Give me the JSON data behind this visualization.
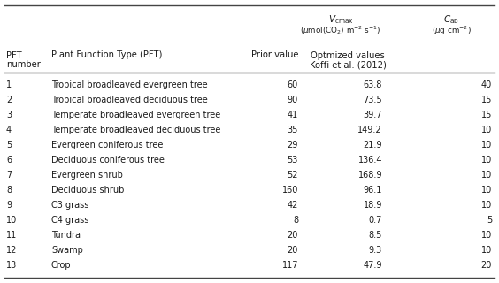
{
  "pft_numbers": [
    "1",
    "2",
    "3",
    "4",
    "5",
    "6",
    "7",
    "8",
    "9",
    "10",
    "11",
    "12",
    "13"
  ],
  "pft_names": [
    "Tropical broadleaved evergreen tree",
    "Tropical broadleaved deciduous tree",
    "Temperate broadleaved evergreen tree",
    "Temperate broadleaved deciduous tree",
    "Evergreen coniferous tree",
    "Deciduous coniferous tree",
    "Evergreen shrub",
    "Deciduous shrub",
    "C3 grass",
    "C4 grass",
    "Tundra",
    "Swamp",
    "Crop"
  ],
  "prior_values": [
    "60",
    "90",
    "41",
    "35",
    "29",
    "53",
    "52",
    "160",
    "42",
    "8",
    "20",
    "20",
    "117"
  ],
  "optimized_values": [
    "63.8",
    "73.5",
    "39.7",
    "149.2",
    "21.9",
    "136.4",
    "168.9",
    "96.1",
    "18.9",
    "0.7",
    "8.5",
    "9.3",
    "47.9"
  ],
  "cab_values": [
    "40",
    "15",
    "15",
    "10",
    "10",
    "10",
    "10",
    "10",
    "10",
    "5",
    "10",
    "10",
    "20"
  ],
  "bg_color": "#ffffff",
  "text_color": "#1a1a1a",
  "line_color": "#444444",
  "fig_width": 5.64,
  "fig_height": 3.2,
  "dpi": 100,
  "fs_data": 7.0,
  "fs_header": 7.2,
  "fs_super": 7.5
}
